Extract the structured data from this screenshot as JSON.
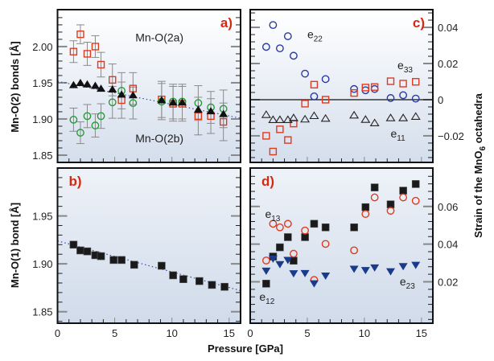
{
  "chart_data": [
    {
      "id": "a",
      "type": "scatter",
      "panel_label": "a)",
      "title": "",
      "xlabel": "Pressure [GPa]",
      "ylabel": "Mn-O(2) bonds [Å]",
      "xlim": [
        0,
        16
      ],
      "ylim": [
        1.84,
        2.051
      ],
      "xticks": [
        0,
        5,
        10,
        15
      ],
      "yticks": [
        1.85,
        1.9,
        1.95,
        2.0
      ],
      "ytick_labels": [
        "1.85",
        "1.90",
        "1.95",
        "2.00"
      ],
      "y_axis_side": "left",
      "grid": false,
      "annotations": [
        {
          "text": "Mn-O(2a)",
          "x": 6.8,
          "y": 2.007
        },
        {
          "text": "Mn-O(2b)",
          "x": 6.8,
          "y": 1.868
        }
      ],
      "x": [
        1.4,
        2.0,
        2.6,
        3.3,
        3.8,
        4.8,
        5.6,
        6.6,
        9.1,
        10.1,
        10.9,
        12.3,
        13.4,
        14.5
      ],
      "series": [
        {
          "name": "Mn-O(2a)",
          "marker": "open-square",
          "color": "#e03a1e",
          "values": [
            1.993,
            2.017,
            1.99,
            2.0,
            1.975,
            1.954,
            1.926,
            1.942,
            1.927,
            1.921,
            1.921,
            1.904,
            1.904,
            1.896
          ],
          "errors": [
            0.015,
            0.013,
            0.016,
            0.015,
            0.017,
            0.022,
            0.025,
            0.022,
            0.025,
            0.024,
            0.024,
            0.026,
            0.024,
            0.026
          ]
        },
        {
          "name": "Mn-O(2b)",
          "marker": "open-circle",
          "color": "#2a9a3a",
          "values": [
            1.899,
            1.881,
            1.904,
            1.891,
            1.904,
            1.923,
            1.939,
            1.922,
            1.924,
            1.924,
            1.924,
            1.922,
            1.916,
            1.914
          ],
          "errors": [
            0.016,
            0.015,
            0.016,
            0.016,
            0.017,
            0.022,
            0.025,
            0.022,
            0.025,
            0.024,
            0.024,
            0.024,
            0.022,
            0.026
          ]
        },
        {
          "name": "Mn-O(2) average",
          "marker": "filled-triangle-up",
          "color": "#111111",
          "values": [
            1.947,
            1.95,
            1.948,
            1.946,
            1.942,
            1.941,
            1.934,
            1.933,
            1.926,
            1.923,
            1.923,
            1.913,
            1.911,
            1.907
          ]
        }
      ],
      "fit_line": {
        "style": "dotted",
        "color": "#3a4aa8",
        "x": [
          0,
          16
        ],
        "y": [
          1.952,
          1.901
        ]
      }
    },
    {
      "id": "b",
      "type": "scatter",
      "panel_label": "b)",
      "xlabel": "Pressure [GPa]",
      "ylabel": "Mn-O(1) bond [Å]",
      "xlim": [
        0,
        16
      ],
      "ylim": [
        1.838,
        2.0
      ],
      "xticks": [
        0,
        5,
        10,
        15
      ],
      "xtick_labels": [
        "0",
        "5",
        "10",
        "15"
      ],
      "yticks": [
        1.85,
        1.9,
        1.95
      ],
      "ytick_labels": [
        "1.85",
        "1.90",
        "1.95"
      ],
      "y_axis_side": "left",
      "grid": false,
      "x": [
        1.4,
        2.0,
        2.6,
        3.3,
        3.8,
        4.9,
        5.6,
        6.7,
        9.1,
        10.1,
        11.0,
        12.4,
        13.5,
        14.6
      ],
      "series": [
        {
          "name": "Mn-O(1)",
          "marker": "filled-square",
          "color": "#1a1a1a",
          "values": [
            1.92,
            1.914,
            1.913,
            1.909,
            1.908,
            1.904,
            1.904,
            1.899,
            1.898,
            1.888,
            1.884,
            1.882,
            1.878,
            1.876
          ]
        }
      ],
      "fit_line": {
        "style": "dotted",
        "color": "#3a4aa8",
        "x": [
          0,
          16
        ],
        "y": [
          1.924,
          1.872
        ]
      }
    },
    {
      "id": "c",
      "type": "scatter",
      "panel_label": "c)",
      "ylabel": "Strain of the MnO6 octahedra",
      "xlim": [
        0,
        16
      ],
      "ylim": [
        -0.0347,
        0.0498
      ],
      "xticks": [
        0,
        5,
        10,
        15
      ],
      "yticks": [
        -0.02,
        0,
        0.02,
        0.04
      ],
      "ytick_labels": [
        "−0.02",
        "0",
        "0.02",
        "0.04"
      ],
      "y_axis_side": "right",
      "zero_line": true,
      "grid": false,
      "annotations": [
        {
          "text": "e",
          "sub": "22",
          "x": 5.0,
          "y": 0.034
        },
        {
          "text": "e",
          "sub": "33",
          "x": 12.9,
          "y": 0.017
        },
        {
          "text": "e",
          "sub": "11",
          "x": 12.3,
          "y": -0.021
        }
      ],
      "x": [
        1.4,
        2.0,
        2.6,
        3.3,
        3.8,
        4.8,
        5.6,
        6.6,
        9.1,
        10.1,
        10.9,
        12.3,
        13.4,
        14.5
      ],
      "series": [
        {
          "name": "e22",
          "marker": "open-circle",
          "color": "#2a3aa0",
          "values": [
            0.0292,
            0.0413,
            0.0284,
            0.0351,
            0.0243,
            0.0144,
            0.0018,
            0.0114,
            0.0059,
            0.0052,
            0.0059,
            0.0009,
            0.0025,
            0.0006
          ]
        },
        {
          "name": "e33",
          "marker": "open-square",
          "color": "#e03a1e",
          "values": [
            -0.02,
            -0.0287,
            -0.0164,
            -0.0223,
            -0.0132,
            -0.0022,
            0.0083,
            0.0,
            0.0037,
            0.0067,
            0.007,
            0.0102,
            0.0089,
            0.0099
          ]
        },
        {
          "name": "e11",
          "marker": "open-triangle-up",
          "color": "#222222",
          "values": [
            -0.0083,
            -0.0111,
            -0.0111,
            -0.0111,
            -0.0101,
            -0.0108,
            -0.0089,
            -0.0104,
            -0.0086,
            -0.011,
            -0.0129,
            -0.0101,
            -0.0101,
            -0.0093
          ]
        }
      ]
    },
    {
      "id": "d",
      "type": "scatter",
      "panel_label": "d)",
      "xlabel": "Pressure [GPa]",
      "ylabel": "Strain of the MnO6 octahedra",
      "xlim": [
        0,
        16
      ],
      "ylim": [
        -0.002,
        0.0804
      ],
      "xticks": [
        0,
        5,
        10,
        15
      ],
      "xtick_labels": [
        "0",
        "5",
        "10",
        "15"
      ],
      "yticks": [
        0.02,
        0.04,
        0.06
      ],
      "ytick_labels": [
        "0.02",
        "0.04",
        "0.06"
      ],
      "y_axis_side": "right",
      "grid": false,
      "annotations": [
        {
          "text": "e",
          "sub": "13",
          "x": 1.3,
          "y": 0.054
        },
        {
          "text": "e",
          "sub": "12",
          "x": 0.8,
          "y": 0.01
        },
        {
          "text": "e",
          "sub": "23",
          "x": 13.1,
          "y": 0.018
        }
      ],
      "x": [
        1.4,
        2.0,
        2.6,
        3.3,
        3.8,
        4.8,
        5.6,
        6.6,
        9.1,
        10.1,
        10.9,
        12.3,
        13.4,
        14.5
      ],
      "series": [
        {
          "name": "e12",
          "marker": "filled-square",
          "color": "#1a1a1a",
          "values": [
            0.019,
            0.0334,
            0.0383,
            0.0437,
            0.0312,
            0.0437,
            0.0508,
            0.0489,
            0.0489,
            0.0596,
            0.0701,
            0.0611,
            0.0684,
            0.0719
          ]
        },
        {
          "name": "e13",
          "marker": "open-circle",
          "color": "#e03a1e",
          "values": [
            0.0313,
            0.0508,
            0.0489,
            0.0508,
            0.0349,
            0.0472,
            0.021,
            0.0401,
            0.0367,
            0.056,
            0.0648,
            0.0577,
            0.0648,
            0.063
          ]
        },
        {
          "name": "e23",
          "marker": "filled-triangle-down",
          "color": "#1a3a8a",
          "values": [
            0.0258,
            0.0322,
            0.0293,
            0.0315,
            0.0244,
            0.0245,
            0.0191,
            0.0232,
            0.0268,
            0.0261,
            0.0275,
            0.0255,
            0.0282,
            0.0289
          ]
        }
      ]
    }
  ],
  "labels": {
    "left_ylabel_top": "Mn-O(2) bonds [Å]",
    "left_ylabel_bottom": "Mn-O(1) bond [Å]",
    "right_ylabel_prefix": "Strain of the MnO",
    "right_ylabel_sub": "6",
    "right_ylabel_suffix": " octahedra",
    "xlabel": "Pressure [GPa]"
  }
}
